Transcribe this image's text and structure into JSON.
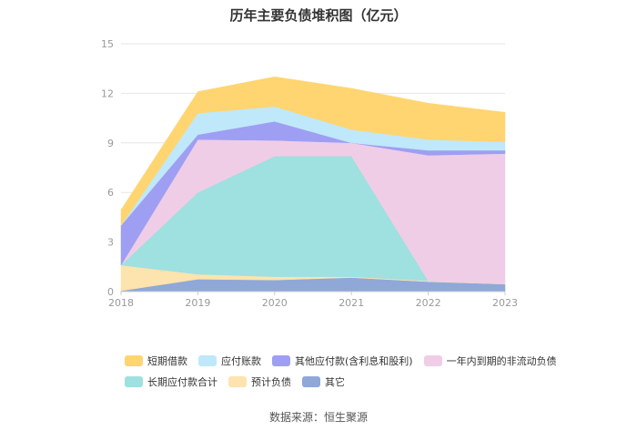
{
  "chart_data": {
    "type": "area",
    "stacked": true,
    "title": "历年主要负债堆积图（亿元）",
    "xlabel": "",
    "ylabel": "",
    "x": [
      "2018",
      "2019",
      "2020",
      "2021",
      "2022",
      "2023"
    ],
    "ylim": [
      0,
      15
    ],
    "yticks": [
      0,
      3,
      6,
      9,
      12,
      15
    ],
    "grid": true,
    "legend_position": "bottom",
    "series": [
      {
        "name": "其它",
        "color": "#8fa8d8",
        "values": [
          0.05,
          0.75,
          0.7,
          0.85,
          0.6,
          0.45
        ]
      },
      {
        "name": "预计负债",
        "color": "#fde3ad",
        "values": [
          1.55,
          0.3,
          0.2,
          0.05,
          0.05,
          0.0
        ]
      },
      {
        "name": "长期应付款合计",
        "color": "#9fe0e0",
        "values": [
          0.0,
          4.95,
          7.3,
          7.3,
          0.0,
          0.0
        ]
      },
      {
        "name": "一年内到期的非流动负债",
        "color": "#f0cde6",
        "values": [
          0.0,
          3.2,
          0.95,
          0.8,
          7.6,
          7.9
        ]
      },
      {
        "name": "其他应付款(含利息和股利)",
        "color": "#9e9ff2",
        "values": [
          2.4,
          0.3,
          1.15,
          0.0,
          0.3,
          0.2
        ]
      },
      {
        "name": "应付账款",
        "color": "#bfe8fb",
        "values": [
          0.0,
          1.3,
          0.9,
          0.8,
          0.65,
          0.5
        ]
      },
      {
        "name": "短期借款",
        "color": "#ffd572",
        "values": [
          0.95,
          1.3,
          1.8,
          2.5,
          2.2,
          1.8
        ]
      }
    ]
  },
  "legend": {
    "row1": [
      "短期借款",
      "应付账款",
      "其他应付款(含利息和股利)",
      "一年内到期的非流动负债"
    ],
    "row2": [
      "长期应付款合计",
      "预计负债",
      "其它"
    ]
  },
  "source": "数据来源：恒生聚源"
}
